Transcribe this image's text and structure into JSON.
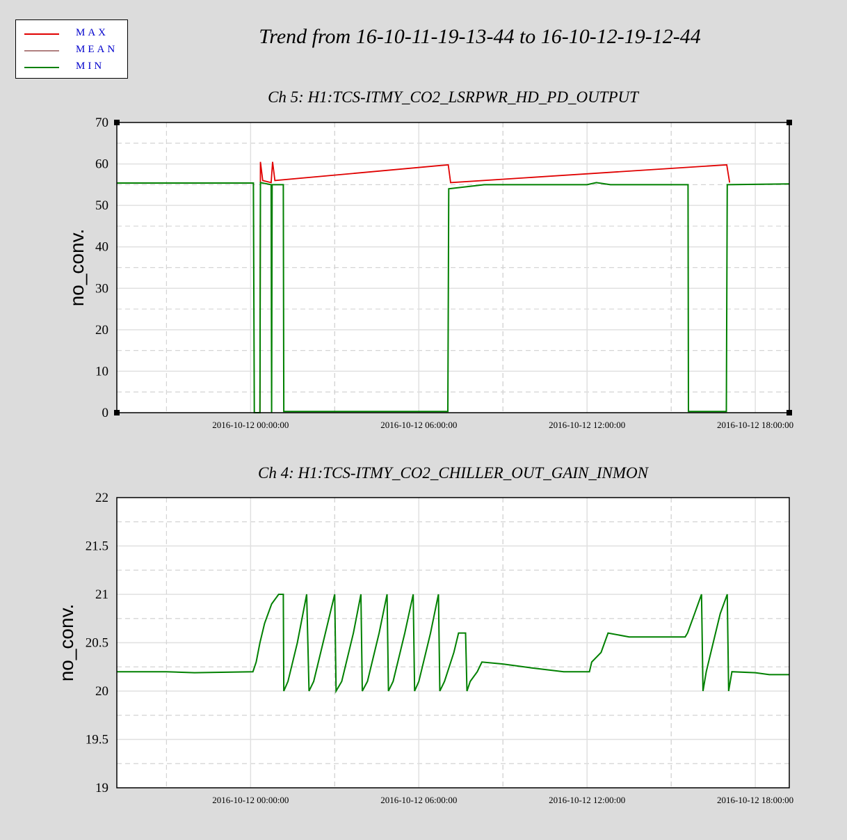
{
  "page": {
    "title": "Trend from 16-10-11-19-13-44 to 16-10-12-19-12-44"
  },
  "legend": {
    "items": [
      {
        "label": "MAX",
        "color": "#e00000"
      },
      {
        "label": "MEAN",
        "color": "#b08080"
      },
      {
        "label": "MIN",
        "color": "#008000"
      }
    ]
  },
  "chart_data": [
    {
      "type": "line",
      "title": "Ch 5: H1:TCS-ITMY_CO2_LSRPWR_HD_PD_OUTPUT",
      "xlabel": "",
      "ylabel": "no_conv.",
      "xlim": [
        "2016-10-11 19:13:44",
        "2016-10-12 19:12:44"
      ],
      "ylim": [
        0,
        70
      ],
      "yticks": [
        "0",
        "10",
        "20",
        "30",
        "40",
        "50",
        "60",
        "70"
      ],
      "ytick_values": [
        0,
        10,
        20,
        30,
        40,
        50,
        60,
        70
      ],
      "xticks": [
        "2016-10-12 00:00:00",
        "2016-10-12 06:00:00",
        "2016-10-12 12:00:00",
        "2016-10-12 18:00:00"
      ],
      "grid": true,
      "series": [
        {
          "name": "MIN",
          "color": "#008000",
          "points": [
            [
              "2016-10-11 19:13:44",
              55.4
            ],
            [
              "2016-10-12 00:06:00",
              55.4
            ],
            [
              "2016-10-12 00:08:00",
              0
            ],
            [
              "2016-10-12 00:20:00",
              0
            ],
            [
              "2016-10-12 00:21:00",
              55.5
            ],
            [
              "2016-10-12 00:44:00",
              55
            ],
            [
              "2016-10-12 00:45:00",
              0
            ],
            [
              "2016-10-12 00:46:00",
              55
            ],
            [
              "2016-10-12 01:10:00",
              55
            ],
            [
              "2016-10-12 01:11:00",
              0.3
            ],
            [
              "2016-10-12 07:02:00",
              0.3
            ],
            [
              "2016-10-12 07:04:00",
              54
            ],
            [
              "2016-10-12 08:20:00",
              55
            ],
            [
              "2016-10-12 12:00:00",
              55
            ],
            [
              "2016-10-12 12:20:00",
              55.5
            ],
            [
              "2016-10-12 12:50:00",
              55
            ],
            [
              "2016-10-12 15:36:00",
              55
            ],
            [
              "2016-10-12 15:37:00",
              0.3
            ],
            [
              "2016-10-12 16:58:00",
              0.3
            ],
            [
              "2016-10-12 17:00:00",
              55
            ],
            [
              "2016-10-12 19:12:44",
              55.2
            ]
          ]
        },
        {
          "name": "MAX",
          "color": "#e00000",
          "points": [
            [
              "2016-10-12 00:20:00",
              0
            ],
            [
              "2016-10-12 00:21:00",
              60.5
            ],
            [
              "2016-10-12 00:26:00",
              56
            ],
            [
              "2016-10-12 00:44:00",
              55.5
            ],
            [
              "2016-10-12 00:47:00",
              60.5
            ],
            [
              "2016-10-12 00:52:00",
              56
            ],
            [
              "2016-10-12 07:03:00",
              59.8
            ],
            [
              "2016-10-12 07:08:00",
              55.5
            ],
            [
              "2016-10-12 16:59:00",
              59.8
            ],
            [
              "2016-10-12 17:05:00",
              55.5
            ]
          ]
        }
      ]
    },
    {
      "type": "line",
      "title": "Ch 4: H1:TCS-ITMY_CO2_CHILLER_OUT_GAIN_INMON",
      "xlabel": "",
      "ylabel": "no_conv.",
      "xlim": [
        "2016-10-11 19:13:44",
        "2016-10-12 19:12:44"
      ],
      "ylim": [
        19,
        22
      ],
      "yticks": [
        "19",
        "19.5",
        "20",
        "20.5",
        "21",
        "21.5",
        "22"
      ],
      "ytick_values": [
        19,
        19.5,
        20,
        20.5,
        21,
        21.5,
        22
      ],
      "xticks": [
        "2016-10-12 00:00:00",
        "2016-10-12 06:00:00",
        "2016-10-12 12:00:00",
        "2016-10-12 18:00:00"
      ],
      "grid": true,
      "series": [
        {
          "name": "MIN",
          "color": "#008000",
          "points": [
            [
              "2016-10-11 19:13:44",
              20.2
            ],
            [
              "2016-10-11 21:00:00",
              20.2
            ],
            [
              "2016-10-11 22:00:00",
              20.19
            ],
            [
              "2016-10-12 00:05:00",
              20.2
            ],
            [
              "2016-10-12 00:12:00",
              20.3
            ],
            [
              "2016-10-12 00:20:00",
              20.5
            ],
            [
              "2016-10-12 00:30:00",
              20.7
            ],
            [
              "2016-10-12 00:45:00",
              20.9
            ],
            [
              "2016-10-12 01:00:00",
              21.0
            ],
            [
              "2016-10-12 01:10:00",
              21.0
            ],
            [
              "2016-10-12 01:11:00",
              20.0
            ],
            [
              "2016-10-12 01:20:00",
              20.1
            ],
            [
              "2016-10-12 01:40:00",
              20.5
            ],
            [
              "2016-10-12 02:00:00",
              21.0
            ],
            [
              "2016-10-12 02:05:00",
              20.0
            ],
            [
              "2016-10-12 02:15:00",
              20.1
            ],
            [
              "2016-10-12 02:40:00",
              20.6
            ],
            [
              "2016-10-12 03:00:00",
              21.0
            ],
            [
              "2016-10-12 03:03:00",
              20.0
            ],
            [
              "2016-10-12 03:15:00",
              20.1
            ],
            [
              "2016-10-12 03:40:00",
              20.6
            ],
            [
              "2016-10-12 03:56:00",
              21.0
            ],
            [
              "2016-10-12 03:59:00",
              20.0
            ],
            [
              "2016-10-12 04:10:00",
              20.1
            ],
            [
              "2016-10-12 04:35:00",
              20.6
            ],
            [
              "2016-10-12 04:52:00",
              21.0
            ],
            [
              "2016-10-12 04:55:00",
              20.0
            ],
            [
              "2016-10-12 05:05:00",
              20.1
            ],
            [
              "2016-10-12 05:30:00",
              20.6
            ],
            [
              "2016-10-12 05:48:00",
              21.0
            ],
            [
              "2016-10-12 05:51:00",
              20.0
            ],
            [
              "2016-10-12 06:00:00",
              20.1
            ],
            [
              "2016-10-12 06:25:00",
              20.6
            ],
            [
              "2016-10-12 06:42:00",
              21.0
            ],
            [
              "2016-10-12 06:45:00",
              20.0
            ],
            [
              "2016-10-12 06:55:00",
              20.1
            ],
            [
              "2016-10-12 07:15:00",
              20.4
            ],
            [
              "2016-10-12 07:25:00",
              20.6
            ],
            [
              "2016-10-12 07:40:00",
              20.6
            ],
            [
              "2016-10-12 07:43:00",
              20.0
            ],
            [
              "2016-10-12 07:50:00",
              20.1
            ],
            [
              "2016-10-12 08:05:00",
              20.2
            ],
            [
              "2016-10-12 08:15:00",
              20.3
            ],
            [
              "2016-10-12 09:00:00",
              20.28
            ],
            [
              "2016-10-12 10:00:00",
              20.24
            ],
            [
              "2016-10-12 11:10:00",
              20.2
            ],
            [
              "2016-10-12 12:05:00",
              20.2
            ],
            [
              "2016-10-12 12:10:00",
              20.3
            ],
            [
              "2016-10-12 12:30:00",
              20.4
            ],
            [
              "2016-10-12 12:45:00",
              20.6
            ],
            [
              "2016-10-12 13:30:00",
              20.56
            ],
            [
              "2016-10-12 15:30:00",
              20.56
            ],
            [
              "2016-10-12 15:35:00",
              20.6
            ],
            [
              "2016-10-12 15:50:00",
              20.8
            ],
            [
              "2016-10-12 16:05:00",
              21.0
            ],
            [
              "2016-10-12 16:08:00",
              20.0
            ],
            [
              "2016-10-12 16:15:00",
              20.2
            ],
            [
              "2016-10-12 16:30:00",
              20.5
            ],
            [
              "2016-10-12 16:45:00",
              20.8
            ],
            [
              "2016-10-12 17:00:00",
              21.0
            ],
            [
              "2016-10-12 17:03:00",
              20.0
            ],
            [
              "2016-10-12 17:10:00",
              20.2
            ],
            [
              "2016-10-12 18:00:00",
              20.19
            ],
            [
              "2016-10-12 18:30:00",
              20.17
            ],
            [
              "2016-10-12 19:12:44",
              20.17
            ]
          ]
        }
      ]
    }
  ]
}
